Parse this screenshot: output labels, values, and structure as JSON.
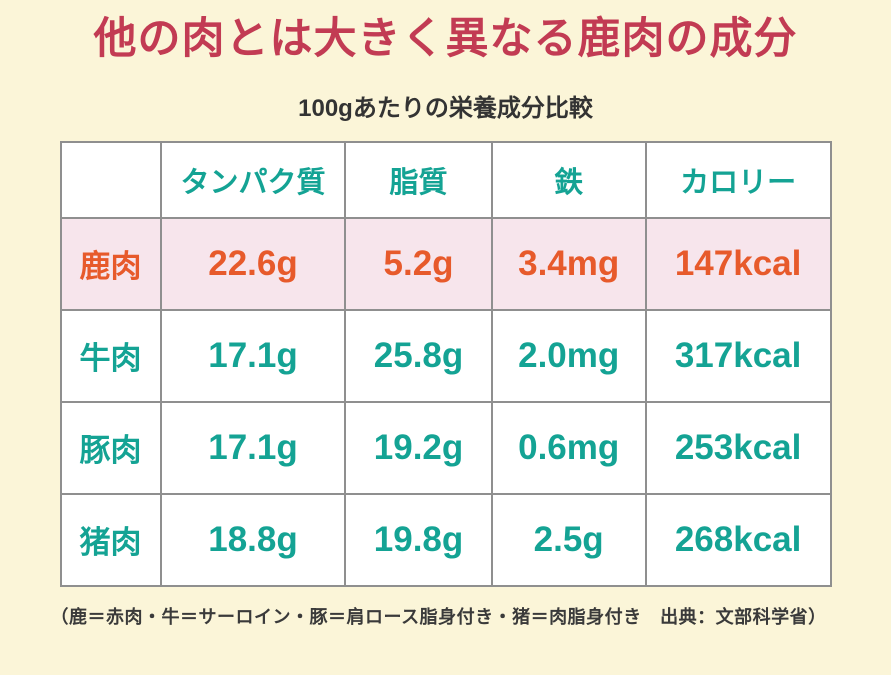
{
  "title": "他の肉とは大きく異なる鹿肉の成分",
  "subtitle": "100gあたりの栄養成分比較",
  "footnote": "（鹿＝赤肉・牛＝サーロイン・豚＝肩ロース脂身付き・猪＝肉脂身付き　出典：文部科学省）",
  "colors": {
    "background": "#FBF5D8",
    "title_red": "#C23B53",
    "teal": "#14A394",
    "orange": "#E75A2B",
    "highlight_row_bg": "#F7E5EC",
    "table_border": "#8F8F8F",
    "text_dark": "#333333"
  },
  "chart_data": {
    "type": "table",
    "title": "100gあたりの栄養成分比較",
    "columns": [
      "",
      "タンパク質",
      "脂質",
      "鉄",
      "カロリー"
    ],
    "rows": [
      {
        "label": "鹿肉",
        "values": [
          "22.6g",
          "5.2g",
          "3.4mg",
          "147kcal"
        ],
        "highlight": true
      },
      {
        "label": "牛肉",
        "values": [
          "17.1g",
          "25.8g",
          "2.0mg",
          "317kcal"
        ],
        "highlight": false
      },
      {
        "label": "豚肉",
        "values": [
          "17.1g",
          "19.2g",
          "0.6mg",
          "253kcal"
        ],
        "highlight": false
      },
      {
        "label": "猪肉",
        "values": [
          "18.8g",
          "19.8g",
          "2.5g",
          "268kcal"
        ],
        "highlight": false
      }
    ]
  }
}
